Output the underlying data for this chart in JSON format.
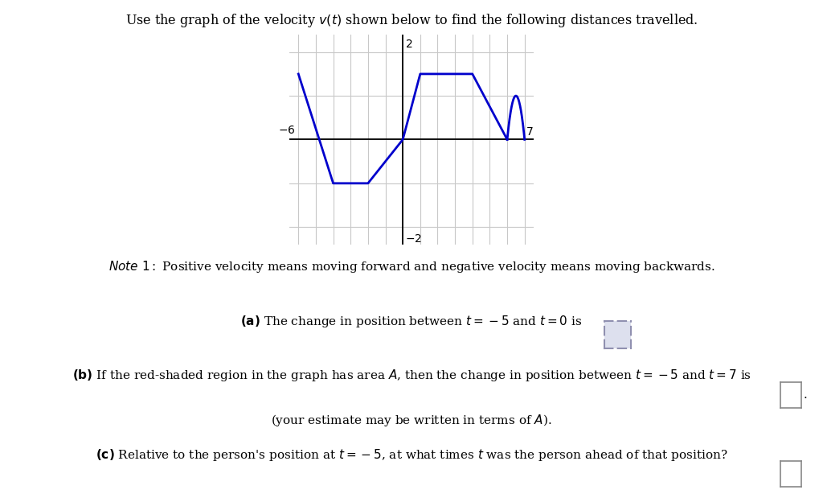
{
  "title": "Use the graph of the velocity $v(t)$ shown below to find the following distances travelled.",
  "line_color": "#0000cc",
  "shade_color": "#e8a0a0",
  "line_width": 2.0,
  "background_color": "#ffffff",
  "grid_color": "#c8c8c8",
  "graph_xlim": [
    -6.5,
    7.5
  ],
  "graph_ylim": [
    -2.4,
    2.4
  ],
  "x_axis_min": -6,
  "x_axis_max": 7,
  "y_axis_min": -2,
  "y_axis_max": 2,
  "fig_width": 10.24,
  "fig_height": 6.14
}
